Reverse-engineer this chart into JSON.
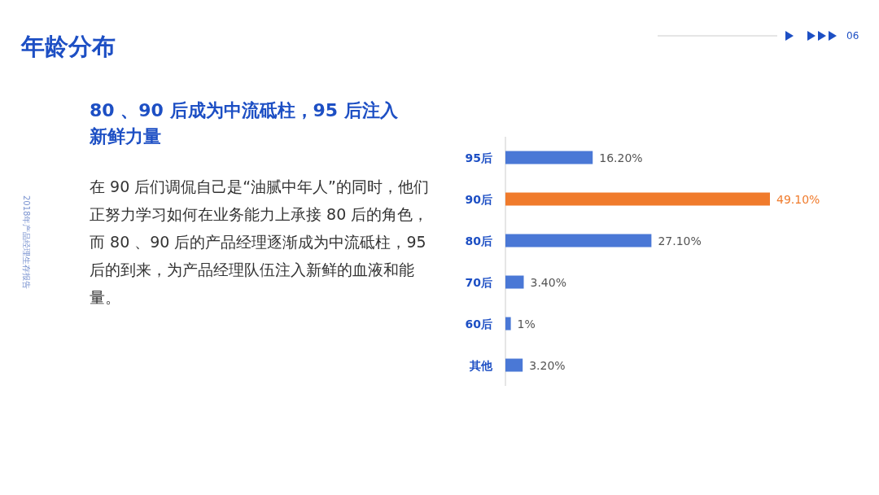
{
  "chart_data": {
    "type": "bar",
    "orientation": "horizontal",
    "title": "年龄分布",
    "subtitle": "80 、90 后成为中流砥柱，95 后注入新鲜力量",
    "categories": [
      "95后",
      "90后",
      "80后",
      "70后",
      "60后",
      "其他"
    ],
    "values": [
      16.2,
      49.1,
      27.1,
      3.4,
      1,
      3.2
    ],
    "colors": [
      "#4a78d6",
      "#f07b2c",
      "#4a78d6",
      "#4a78d6",
      "#4a78d6",
      "#4a78d6"
    ],
    "value_labels": [
      "16.20%",
      "49.10%",
      "27.10%",
      "3.40%",
      "1%",
      "3.20%"
    ],
    "annotations": [
      "在 90 后们调侃自己是“油腻中年人”的同时，他们正努力学习如何在业务能力上承接 80 后的角色，而 80 、90 后的产品经理逐渐成为中流砥柱，95 后的到来，为产品经理队伍注入新鲜的血液和能量。",
      "2018年产品经理生存报告",
      "06"
    ]
  }
}
